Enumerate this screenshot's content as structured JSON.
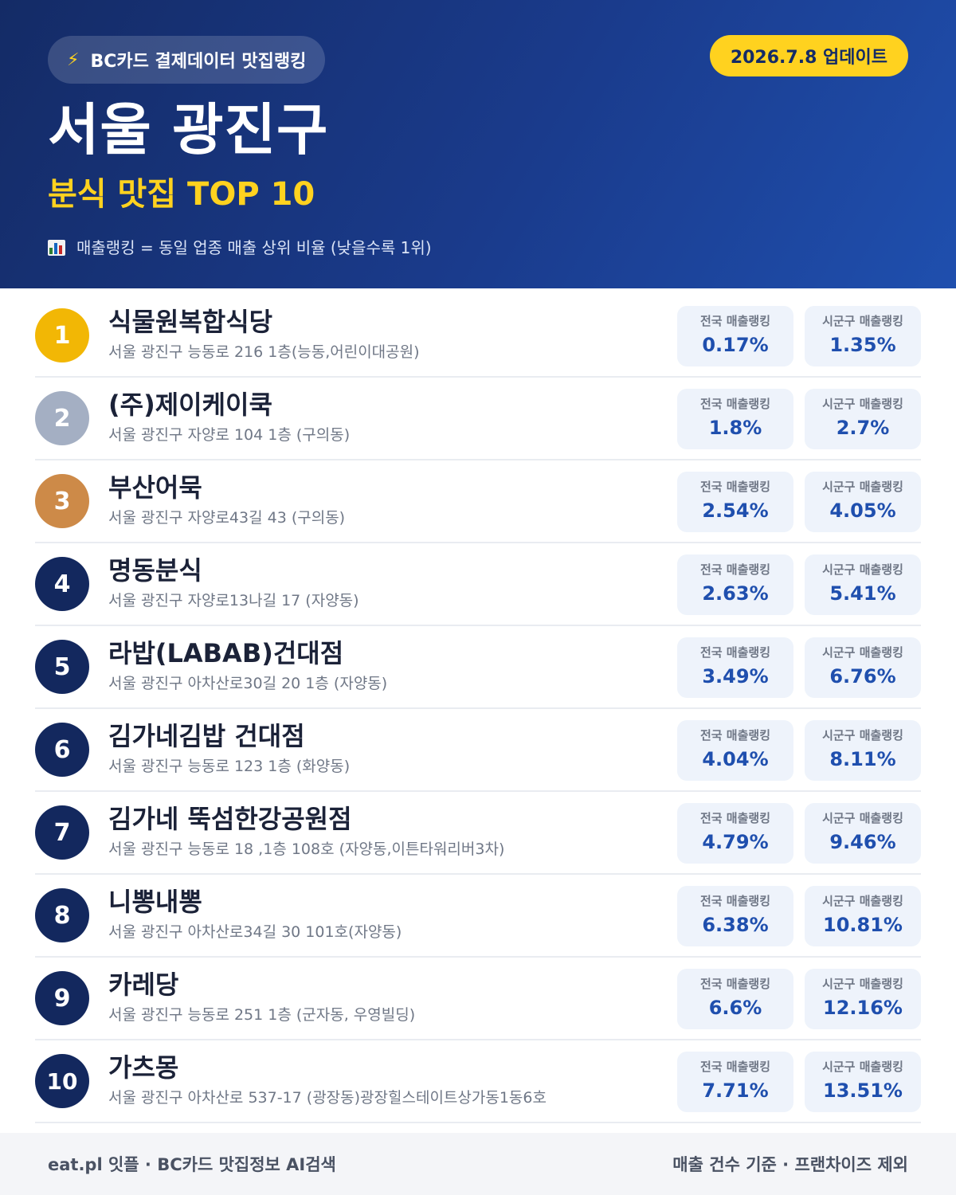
{
  "header": {
    "badge_icon": "lightning-bolt-icon",
    "badge_label": "BC카드 결제데이터 맛집랭킹",
    "update_label": "2026.7.8 업데이트",
    "title": "서울 광진구",
    "subtitle": "분식 맛집 TOP 10",
    "note_icon": "bar-chart-icon",
    "note": "매출랭킹 = 동일 업종 매출 상위 비율 (낮을수록 1위)"
  },
  "stat_labels": {
    "national": "전국 매출랭킹",
    "district": "시군구 매출랭킹"
  },
  "colors": {
    "navy": "#142b66",
    "accent_yellow": "#ffd21f",
    "gold": "#f2b705",
    "silver": "#a4afc3",
    "bronze": "#cd8a48",
    "value_blue": "#1f4fae"
  },
  "restaurants": [
    {
      "rank": "1",
      "name": "식물원복합식당",
      "address": "서울 광진구 능동로 216 1층(능동,어린이대공원)",
      "national": "0.17%",
      "district": "1.35%"
    },
    {
      "rank": "2",
      "name": "(주)제이케이쿡",
      "address": "서울 광진구 자양로 104 1층 (구의동)",
      "national": "1.8%",
      "district": "2.7%"
    },
    {
      "rank": "3",
      "name": "부산어묵",
      "address": "서울 광진구 자양로43길 43 (구의동)",
      "national": "2.54%",
      "district": "4.05%"
    },
    {
      "rank": "4",
      "name": "명동분식",
      "address": "서울 광진구 자양로13나길 17 (자양동)",
      "national": "2.63%",
      "district": "5.41%"
    },
    {
      "rank": "5",
      "name": "라밥(LABAB)건대점",
      "address": "서울 광진구 아차산로30길 20 1층 (자양동)",
      "national": "3.49%",
      "district": "6.76%"
    },
    {
      "rank": "6",
      "name": "김가네김밥 건대점",
      "address": "서울 광진구 능동로 123 1층 (화양동)",
      "national": "4.04%",
      "district": "8.11%"
    },
    {
      "rank": "7",
      "name": "김가네 뚝섬한강공원점",
      "address": "서울 광진구 능동로 18 ,1층 108호 (자양동,이튼타워리버3차)",
      "national": "4.79%",
      "district": "9.46%"
    },
    {
      "rank": "8",
      "name": "니뽕내뽕",
      "address": "서울 광진구 아차산로34길 30 101호(자양동)",
      "national": "6.38%",
      "district": "10.81%"
    },
    {
      "rank": "9",
      "name": "카레당",
      "address": "서울 광진구 능동로 251 1층 (군자동, 우영빌딩)",
      "national": "6.6%",
      "district": "12.16%"
    },
    {
      "rank": "10",
      "name": "가츠몽",
      "address": "서울 광진구 아차산로 537-17 (광장동)광장힐스테이트상가동1동6호",
      "national": "7.71%",
      "district": "13.51%"
    }
  ],
  "footer": {
    "left": "eat.pl 잇플 · BC카드 맛집정보 AI검색",
    "right": "매출 건수 기준 · 프랜차이즈 제외"
  }
}
